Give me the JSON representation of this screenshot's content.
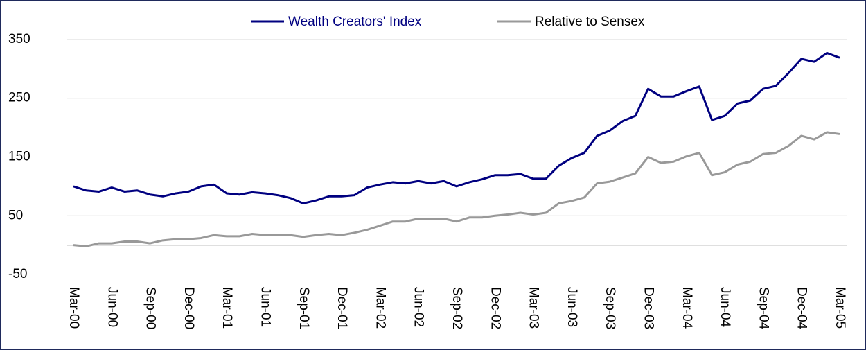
{
  "chart_data": {
    "type": "line",
    "categories": [
      "Mar-00",
      null,
      null,
      "Jun-00",
      null,
      null,
      "Sep-00",
      null,
      null,
      "Dec-00",
      null,
      null,
      "Mar-01",
      null,
      null,
      "Jun-01",
      null,
      null,
      "Sep-01",
      null,
      null,
      "Dec-01",
      null,
      null,
      "Mar-02",
      null,
      null,
      "Jun-02",
      null,
      null,
      "Sep-02",
      null,
      null,
      "Dec-02",
      null,
      null,
      "Mar-03",
      null,
      null,
      "Jun-03",
      null,
      null,
      "Sep-03",
      null,
      null,
      "Dec-03",
      null,
      null,
      "Mar-04",
      null,
      null,
      "Jun-04",
      null,
      null,
      "Sep-04",
      null,
      null,
      "Dec-04",
      null,
      null,
      "Mar-05"
    ],
    "series": [
      {
        "name": "Wealth Creators' Index",
        "color": "#000080",
        "values": [
          100,
          93,
          91,
          98,
          91,
          93,
          86,
          83,
          88,
          91,
          100,
          103,
          88,
          86,
          90,
          88,
          85,
          80,
          71,
          76,
          83,
          83,
          85,
          98,
          103,
          107,
          105,
          109,
          105,
          109,
          100,
          107,
          112,
          119,
          119,
          121,
          113,
          113,
          135,
          148,
          157,
          186,
          195,
          211,
          220,
          266,
          253,
          253,
          262,
          270,
          213,
          220,
          241,
          246,
          266,
          271,
          293,
          317,
          312,
          327,
          319
        ]
      },
      {
        "name": "Relative to Sensex",
        "color": "#999999",
        "values": [
          0,
          -2,
          3,
          3,
          6,
          6,
          3,
          8,
          10,
          10,
          12,
          17,
          15,
          15,
          19,
          17,
          17,
          17,
          14,
          17,
          19,
          17,
          21,
          26,
          33,
          40,
          40,
          45,
          45,
          45,
          40,
          47,
          47,
          50,
          52,
          55,
          52,
          55,
          71,
          75,
          81,
          105,
          108,
          115,
          122,
          150,
          140,
          142,
          151,
          157,
          119,
          124,
          137,
          142,
          155,
          157,
          169,
          186,
          180,
          192,
          189
        ]
      }
    ],
    "ylim": [
      -50,
      400
    ],
    "yticks": [
      -50,
      50,
      150,
      250,
      350
    ],
    "grid": true
  }
}
